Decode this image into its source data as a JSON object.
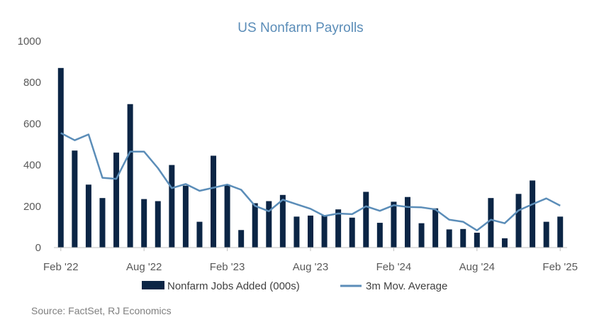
{
  "colors": {
    "bar": "#0b2545",
    "line": "#5b8db8",
    "title": "#5b8db8",
    "axis": "#bfbfbf"
  },
  "source": "Source: FactSet, RJ Economics",
  "chart_data": {
    "type": "bar",
    "title": "US Nonfarm Payrolls",
    "ylim": [
      0,
      1000
    ],
    "yticks": [
      0,
      200,
      400,
      600,
      800,
      1000
    ],
    "x": [
      "Feb '22",
      "Mar '22",
      "Apr '22",
      "May '22",
      "Jun '22",
      "Jul '22",
      "Aug '22",
      "Sep '22",
      "Oct '22",
      "Nov '22",
      "Dec '22",
      "Jan '23",
      "Feb '23",
      "Mar '23",
      "Apr '23",
      "May '23",
      "Jun '23",
      "Jul '23",
      "Aug '23",
      "Sep '23",
      "Oct '23",
      "Nov '23",
      "Dec '23",
      "Jan '24",
      "Feb '24",
      "Mar '24",
      "Apr '24",
      "May '24",
      "Jun '24",
      "Jul '24",
      "Aug '24",
      "Sep '24",
      "Oct '24",
      "Nov '24",
      "Dec '24",
      "Jan '25",
      "Feb '25"
    ],
    "xtick_labels": [
      "Feb '22",
      "Aug '22",
      "Feb '23",
      "Aug '23",
      "Feb '24",
      "Aug '24",
      "Feb '25"
    ],
    "series": [
      {
        "name": "Nonfarm Jobs Added (000s)",
        "kind": "bar",
        "values": [
          870,
          470,
          305,
          240,
          460,
          695,
          235,
          225,
          400,
          300,
          125,
          445,
          305,
          85,
          215,
          225,
          255,
          150,
          155,
          155,
          185,
          145,
          270,
          120,
          222,
          245,
          118,
          190,
          88,
          90,
          72,
          240,
          45,
          260,
          325,
          125,
          150
        ]
      },
      {
        "name": "3m Mov. Average",
        "kind": "line",
        "values": [
          555,
          520,
          548,
          338,
          333,
          465,
          465,
          385,
          288,
          308,
          275,
          290,
          305,
          280,
          202,
          176,
          232,
          210,
          188,
          153,
          165,
          162,
          200,
          178,
          205,
          197,
          195,
          185,
          135,
          125,
          83,
          135,
          118,
          180,
          210,
          238,
          203
        ]
      }
    ]
  }
}
